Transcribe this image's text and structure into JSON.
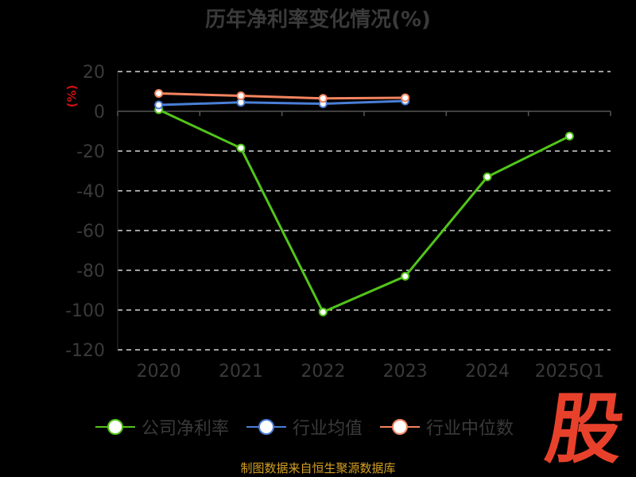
{
  "chart_data": {
    "type": "line",
    "title": "历年净利率变化情况(%)",
    "ylabel": "(%)",
    "categories": [
      "2020",
      "2021",
      "2022",
      "2023",
      "2024",
      "2025Q1"
    ],
    "ylim": [
      -120,
      20
    ],
    "yticks": [
      20,
      0,
      -20,
      -40,
      -60,
      -80,
      -100,
      -120
    ],
    "grid": true,
    "legend_position": "bottom",
    "series": [
      {
        "name": "公司净利率",
        "color": "#52c41a",
        "values": [
          0.8,
          -18.5,
          -101,
          -83,
          -33,
          -12.5
        ]
      },
      {
        "name": "行业均值",
        "color": "#4a7fd6",
        "values": [
          3.2,
          4.5,
          3.8,
          5.2,
          null,
          null
        ]
      },
      {
        "name": "行业中位数",
        "color": "#f4845f",
        "values": [
          9,
          7.8,
          6.5,
          6.8,
          null,
          null
        ]
      }
    ]
  },
  "logo_text": "股",
  "source_text": "制图数据来自恒生聚源数据库"
}
